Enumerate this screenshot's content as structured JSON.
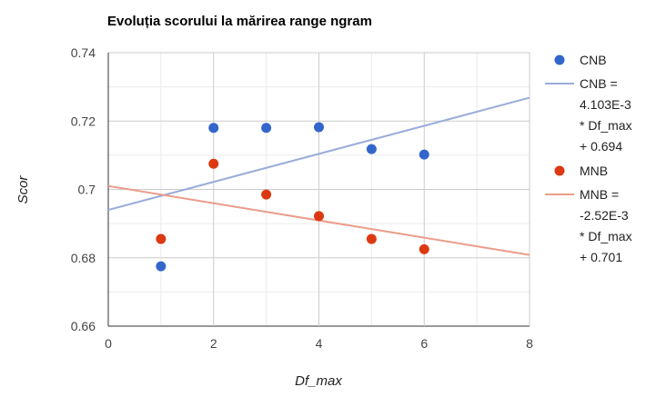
{
  "chart_data": {
    "type": "scatter",
    "title": "Evoluția scorului la mărirea range ngram",
    "xlabel": "Df_max",
    "ylabel": "Scor",
    "xlim": [
      0,
      8
    ],
    "ylim": [
      0.66,
      0.74
    ],
    "x_ticks": [
      "0",
      "2",
      "4",
      "6",
      "8"
    ],
    "y_ticks": [
      "0.66",
      "0.68",
      "0.7",
      "0.72",
      "0.74"
    ],
    "grid": true,
    "legend_position": "right",
    "series": [
      {
        "name": "CNB",
        "color": "#3366cc",
        "points": [
          {
            "x": 1,
            "y": 0.6775
          },
          {
            "x": 2,
            "y": 0.718
          },
          {
            "x": 3,
            "y": 0.718
          },
          {
            "x": 4,
            "y": 0.7182
          },
          {
            "x": 5,
            "y": 0.7118
          },
          {
            "x": 6,
            "y": 0.7102
          }
        ],
        "trendline": {
          "slope": 0.004103,
          "intercept": 0.694,
          "color": "#99acd9",
          "label_lines": [
            "CNB =",
            "4.103E-3",
            "* Df_max",
            "+ 0.694"
          ]
        }
      },
      {
        "name": "MNB",
        "color": "#dc3912",
        "points": [
          {
            "x": 1,
            "y": 0.6855
          },
          {
            "x": 2,
            "y": 0.7075
          },
          {
            "x": 3,
            "y": 0.6985
          },
          {
            "x": 4,
            "y": 0.6922
          },
          {
            "x": 5,
            "y": 0.6855
          },
          {
            "x": 6,
            "y": 0.6825
          }
        ],
        "trendline": {
          "slope": -0.00252,
          "intercept": 0.701,
          "color": "#eb9c88",
          "label_lines": [
            "MNB =",
            "-2.52E-3",
            "* Df_max",
            "+ 0.701"
          ]
        }
      }
    ]
  }
}
